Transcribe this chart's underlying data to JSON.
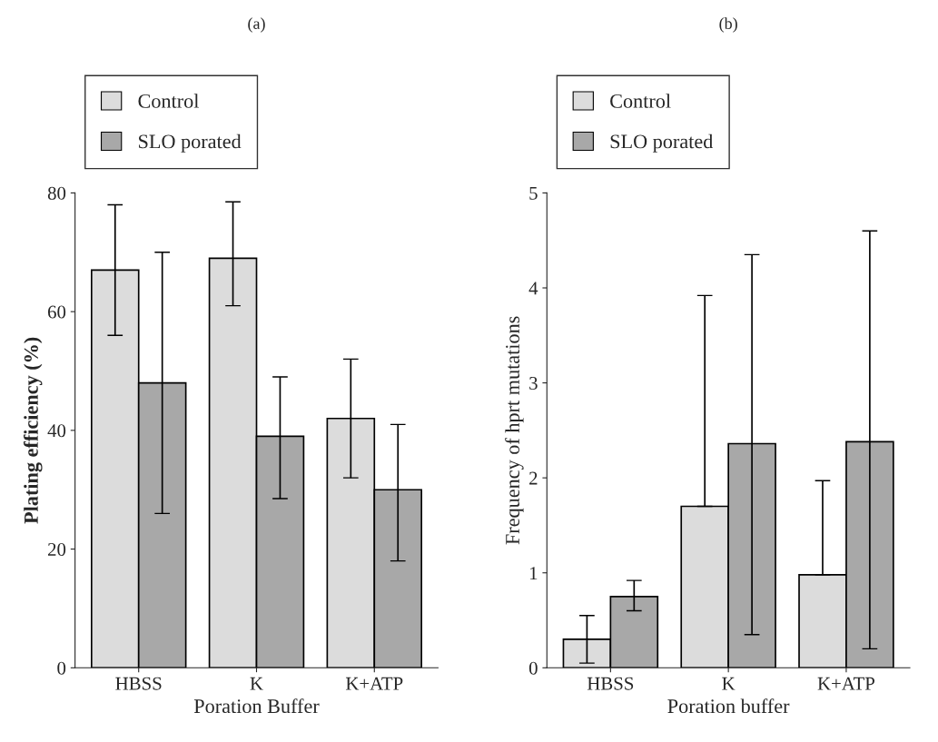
{
  "chart_data": [
    {
      "type": "bar",
      "title": "(a)",
      "xlabel": "Poration Buffer",
      "ylabel": "Plating efficiency (%)",
      "categories": [
        "HBSS",
        "K",
        "K+ATP"
      ],
      "ylim": [
        0,
        80
      ],
      "yticks": [
        0,
        20,
        40,
        60,
        80
      ],
      "legend": "top",
      "grid": false,
      "series": [
        {
          "name": "Control",
          "color": "#dcdcdc",
          "values": [
            67,
            69,
            42
          ],
          "errors": [
            [
              56,
              78
            ],
            [
              61,
              78.5
            ],
            [
              32,
              52
            ]
          ]
        },
        {
          "name": "SLO porated",
          "color": "#a8a8a8",
          "values": [
            48,
            39,
            30
          ],
          "errors": [
            [
              26,
              70
            ],
            [
              28.5,
              49
            ],
            [
              18,
              41
            ]
          ]
        }
      ]
    },
    {
      "type": "bar",
      "title": "(b)",
      "xlabel": "Poration buffer",
      "ylabel": "Frequency of hprt mutations",
      "categories": [
        "HBSS",
        "K",
        "K+ATP"
      ],
      "ylim": [
        0,
        5
      ],
      "yticks": [
        0,
        1,
        2,
        3,
        4,
        5
      ],
      "legend": "top",
      "grid": false,
      "series": [
        {
          "name": "Control",
          "color": "#dcdcdc",
          "values": [
            0.3,
            1.7,
            0.98
          ],
          "errors": [
            [
              0.05,
              0.55
            ],
            [
              1.7,
              3.92
            ],
            [
              0.98,
              1.97
            ]
          ]
        },
        {
          "name": "SLO porated",
          "color": "#a8a8a8",
          "values": [
            0.75,
            2.36,
            2.38
          ],
          "errors": [
            [
              0.6,
              0.92
            ],
            [
              0.35,
              4.35
            ],
            [
              0.2,
              4.6
            ]
          ]
        }
      ]
    }
  ]
}
